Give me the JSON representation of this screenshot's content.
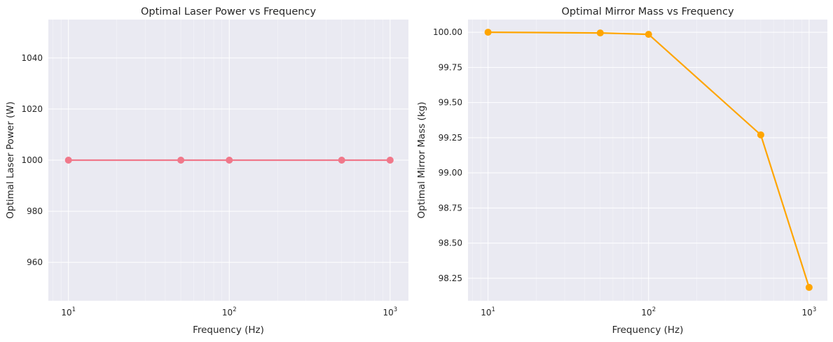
{
  "chart_data": [
    {
      "type": "line",
      "title": "Optimal Laser Power vs Frequency",
      "xlabel": "Frequency (Hz)",
      "ylabel": "Optimal Laser Power (W)",
      "xscale": "log",
      "xlim": [
        7.5,
        1300
      ],
      "ylim": [
        945,
        1055
      ],
      "xticks": [
        10,
        100,
        1000
      ],
      "xtick_labels": [
        {
          "base": "10",
          "exp": "1"
        },
        {
          "base": "10",
          "exp": "2"
        },
        {
          "base": "10",
          "exp": "3"
        }
      ],
      "yticks": [
        960,
        980,
        1000,
        1020,
        1040
      ],
      "ytick_labels": [
        "960",
        "980",
        "1000",
        "1020",
        "1040"
      ],
      "grid": true,
      "color": "#f0788a",
      "series": [
        {
          "x": [
            10,
            50,
            100,
            500,
            1000
          ],
          "y": [
            1000,
            1000,
            1000,
            1000,
            1000
          ]
        }
      ]
    },
    {
      "type": "line",
      "title": "Optimal Mirror Mass vs Frequency",
      "xlabel": "Frequency (Hz)",
      "ylabel": "Optimal Mirror Mass (kg)",
      "xscale": "log",
      "xlim": [
        7.5,
        1300
      ],
      "ylim": [
        98.09,
        100.09
      ],
      "xticks": [
        10,
        100,
        1000
      ],
      "xtick_labels": [
        {
          "base": "10",
          "exp": "1"
        },
        {
          "base": "10",
          "exp": "2"
        },
        {
          "base": "10",
          "exp": "3"
        }
      ],
      "yticks": [
        98.25,
        98.5,
        98.75,
        99.0,
        99.25,
        99.5,
        99.75,
        100.0
      ],
      "ytick_labels": [
        "98.25",
        "98.50",
        "98.75",
        "99.00",
        "99.25",
        "99.50",
        "99.75",
        "100.00"
      ],
      "grid": true,
      "color": "#ffa500",
      "series": [
        {
          "x": [
            10,
            50,
            100,
            500,
            1000
          ],
          "y": [
            100.0,
            99.995,
            99.985,
            99.27,
            98.185
          ]
        }
      ]
    }
  ]
}
